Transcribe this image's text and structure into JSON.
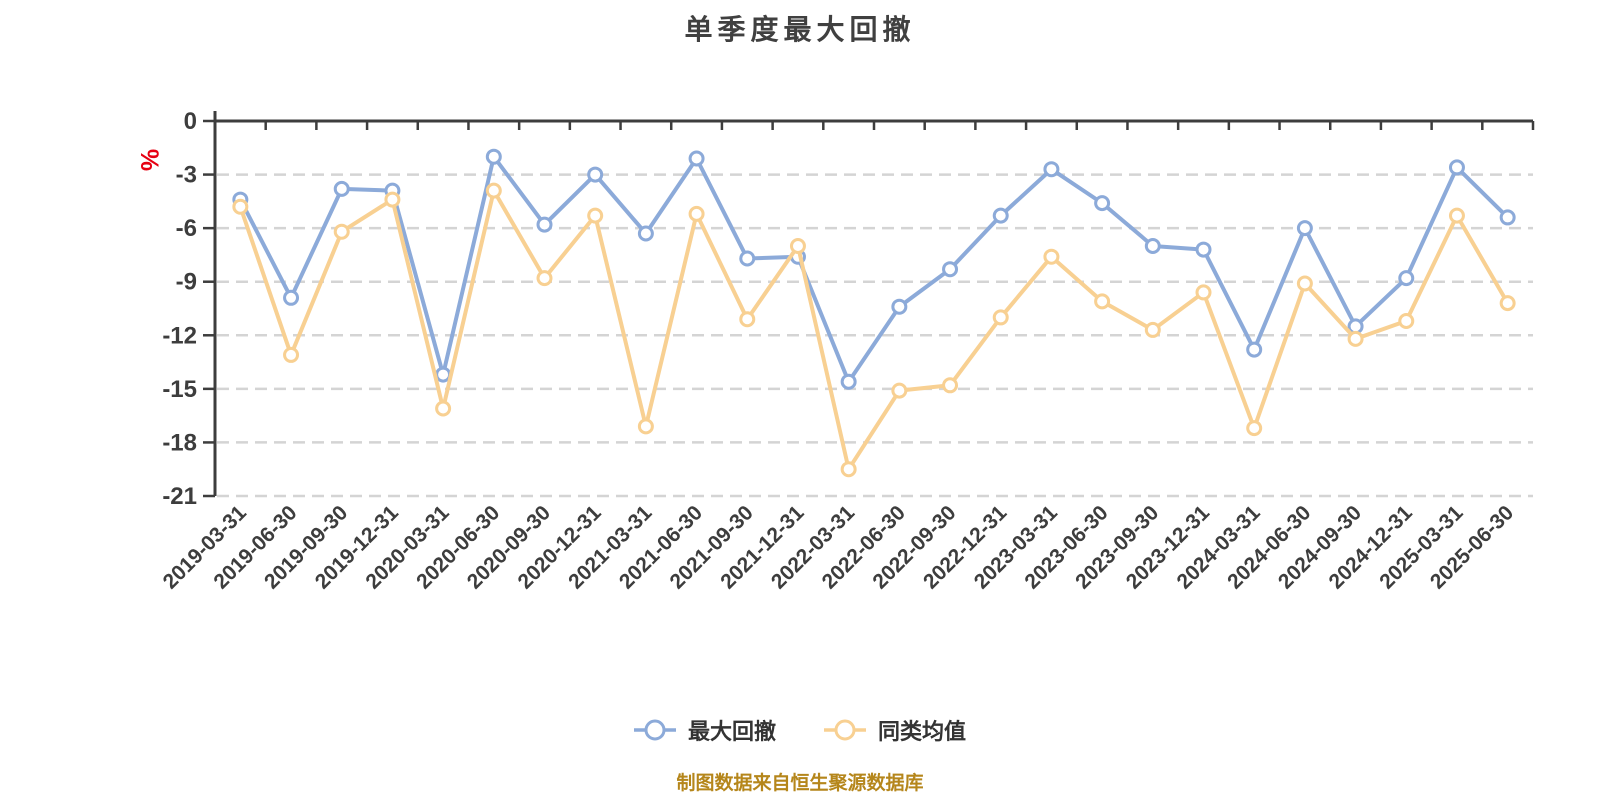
{
  "chart": {
    "title": "单季度最大回撤",
    "y_axis_unit": "%",
    "caption": "制图数据来自恒生聚源数据库",
    "colors": {
      "axis": "#3d3d3d",
      "grid": "#d4d4d4",
      "title": "#404040",
      "unit_red": "#e60012",
      "caption_gold": "#b5861b",
      "legend_text": "#333333",
      "background": "#ffffff",
      "marker_fill": "#ffffff"
    }
  },
  "chart_data": {
    "type": "line",
    "title": "单季度最大回撤",
    "xlabel": "",
    "ylabel": "%",
    "ylim": [
      -21,
      0
    ],
    "y_ticks": [
      0,
      -3,
      -6,
      -9,
      -12,
      -15,
      -18,
      -21
    ],
    "grid": "dashed horizontal",
    "legend_position": "bottom",
    "categories": [
      "2019-03-31",
      "2019-06-30",
      "2019-09-30",
      "2019-12-31",
      "2020-03-31",
      "2020-06-30",
      "2020-09-30",
      "2020-12-31",
      "2021-03-31",
      "2021-06-30",
      "2021-09-30",
      "2021-12-31",
      "2022-03-31",
      "2022-06-30",
      "2022-09-30",
      "2022-12-31",
      "2023-03-31",
      "2023-06-30",
      "2023-09-30",
      "2023-12-31",
      "2024-03-31",
      "2024-06-30",
      "2024-09-30",
      "2024-12-31",
      "2025-03-31",
      "2025-06-30"
    ],
    "series": [
      {
        "name": "最大回撤",
        "color": "#8caad9",
        "values": [
          -4.4,
          -9.9,
          -3.8,
          -3.9,
          -14.2,
          -2.0,
          -5.8,
          -3.0,
          -6.3,
          -2.1,
          -7.7,
          -7.6,
          -14.6,
          -10.4,
          -8.3,
          -5.3,
          -2.7,
          -4.6,
          -7.0,
          -7.2,
          -12.8,
          -6.0,
          -11.5,
          -8.8,
          -2.6,
          -5.4
        ]
      },
      {
        "name": "同类均值",
        "color": "#f8d092",
        "values": [
          -4.8,
          -13.1,
          -6.2,
          -4.4,
          -16.1,
          -3.9,
          -8.8,
          -5.3,
          -17.1,
          -5.2,
          -11.1,
          -7.0,
          -19.5,
          -15.1,
          -14.8,
          -11.0,
          -7.6,
          -10.1,
          -11.7,
          -9.6,
          -17.2,
          -9.1,
          -12.2,
          -11.2,
          -5.3,
          -10.2
        ]
      }
    ]
  }
}
